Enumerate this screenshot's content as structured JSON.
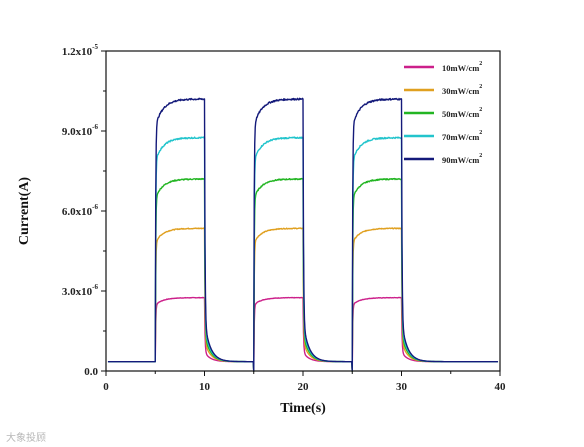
{
  "chart_data": {
    "type": "line",
    "xlabel": "Time(s)",
    "ylabel": "Current(A)",
    "xlim": [
      0,
      40
    ],
    "ylim": [
      0,
      1.2e-05
    ],
    "x_ticks": [
      0,
      10,
      20,
      30,
      40
    ],
    "y_ticks": [
      0,
      3e-06,
      6e-06,
      9e-06,
      1.2e-05
    ],
    "y_tick_labels": [
      {
        "mantissa": "0.0",
        "exp": ""
      },
      {
        "mantissa": "3.0x10",
        "exp": "-6"
      },
      {
        "mantissa": "6.0x10",
        "exp": "-6"
      },
      {
        "mantissa": "9.0x10",
        "exp": "-6"
      },
      {
        "mantissa": "1.2x10",
        "exp": "-5"
      }
    ],
    "grid": false,
    "legend_position": "top-right",
    "dark_current": 3.5e-07,
    "light_on_times": [
      5,
      15,
      25
    ],
    "light_off_times": [
      10,
      20,
      30
    ],
    "series": [
      {
        "name": "10mW/cm",
        "sup": "2",
        "color": "#cc1f8a",
        "plateau": 2.75e-06
      },
      {
        "name": "30mW/cm",
        "sup": "2",
        "color": "#e0a020",
        "plateau": 5.35e-06
      },
      {
        "name": "50mW/cm",
        "sup": "2",
        "color": "#22b522",
        "plateau": 7.2e-06
      },
      {
        "name": "70mW/cm",
        "sup": "2",
        "color": "#22c4cc",
        "plateau": 8.75e-06
      },
      {
        "name": "90mW/cm",
        "sup": "2",
        "color": "#141a7a",
        "plateau": 1.02e-05
      }
    ]
  },
  "watermark": "大象投顾"
}
